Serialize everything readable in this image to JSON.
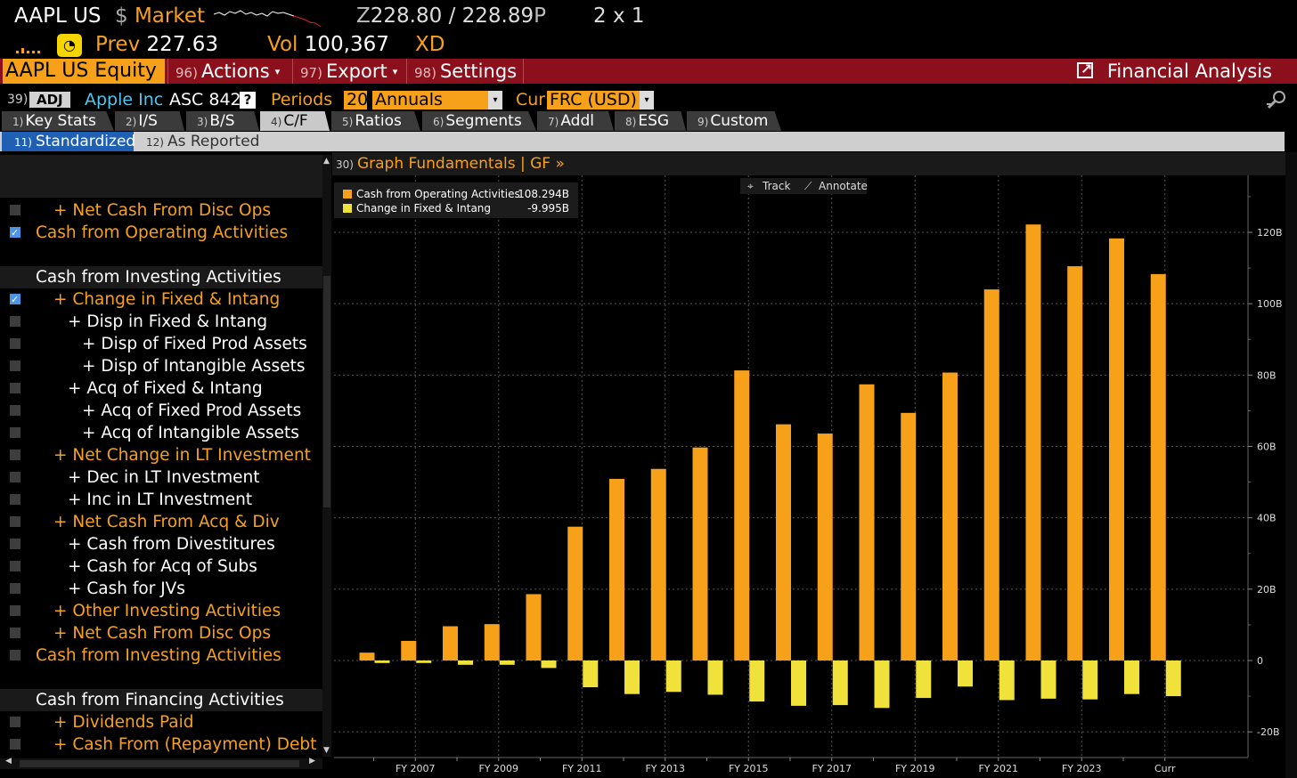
{
  "header": {
    "ticker": "AAPL US",
    "market_symbol": "$",
    "market_label": "Market",
    "quote_prefix": "Z",
    "bid": "228.80",
    "sep": "/",
    "ask": "228.89",
    "quote_suffix": "P",
    "size": "2 x 1",
    "prev_label": "Prev",
    "prev_value": "227.63",
    "vol_label": "Vol",
    "vol_value": "100,367",
    "xd_label": "XD"
  },
  "menubar": {
    "security": "AAPL US Equity",
    "actions_num": "96)",
    "actions_label": "Actions",
    "export_num": "97)",
    "export_label": "Export",
    "settings_num": "98)",
    "settings_label": "Settings",
    "function_title": "Financial Analysis",
    "dropdown_glyph": "▾"
  },
  "options": {
    "num": "39)",
    "adj": "ADJ",
    "company": "Apple Inc",
    "standard": "ASC 842",
    "help": "?",
    "periods_label": "Periods",
    "periods_value": "20",
    "frequency_value": "Annuals",
    "currency_label": "Cur",
    "currency_value": "FRC (USD)",
    "dropdown_glyph": "▾"
  },
  "tabs": [
    {
      "num": "1)",
      "label": "Key Stats"
    },
    {
      "num": "2)",
      "label": "I/S"
    },
    {
      "num": "3)",
      "label": "B/S"
    },
    {
      "num": "4)",
      "label": "C/F"
    },
    {
      "num": "5)",
      "label": "Ratios"
    },
    {
      "num": "6)",
      "label": "Segments"
    },
    {
      "num": "7)",
      "label": "Addl"
    },
    {
      "num": "8)",
      "label": "ESG"
    },
    {
      "num": "9)",
      "label": "Custom"
    }
  ],
  "subtabs": [
    {
      "num": "11)",
      "label": "Standardized"
    },
    {
      "num": "12)",
      "label": "As Reported"
    }
  ],
  "left_panel": {
    "rows": [
      {
        "label": "+ Net Cash From Disc Ops",
        "level": 1,
        "checked": false,
        "section": false
      },
      {
        "label": "Cash from Operating Activities",
        "level": 0,
        "checked": true,
        "section": false
      },
      {
        "label": "",
        "level": -1,
        "checked": false,
        "section": false
      },
      {
        "label": "Cash from Investing Activities",
        "level": 0,
        "checked": false,
        "section": true
      },
      {
        "label": "+ Change in Fixed & Intang",
        "level": 1,
        "checked": true,
        "section": false
      },
      {
        "label": "+ Disp in Fixed & Intang",
        "level": 2,
        "checked": false,
        "section": false
      },
      {
        "label": "+ Disp of Fixed Prod Assets",
        "level": 3,
        "checked": false,
        "section": false
      },
      {
        "label": "+ Disp of Intangible Assets",
        "level": 3,
        "checked": false,
        "section": false
      },
      {
        "label": "+ Acq of Fixed & Intang",
        "level": 2,
        "checked": false,
        "section": false
      },
      {
        "label": "+ Acq of Fixed Prod Assets",
        "level": 3,
        "checked": false,
        "section": false
      },
      {
        "label": "+ Acq of Intangible Assets",
        "level": 3,
        "checked": false,
        "section": false
      },
      {
        "label": "+ Net Change in LT Investment",
        "level": 1,
        "checked": false,
        "section": false
      },
      {
        "label": "+ Dec in LT Investment",
        "level": 2,
        "checked": false,
        "section": false
      },
      {
        "label": "+ Inc in LT Investment",
        "level": 2,
        "checked": false,
        "section": false
      },
      {
        "label": "+ Net Cash From Acq & Div",
        "level": 1,
        "checked": false,
        "section": false
      },
      {
        "label": "+ Cash from Divestitures",
        "level": 2,
        "checked": false,
        "section": false
      },
      {
        "label": "+ Cash for Acq of Subs",
        "level": 2,
        "checked": false,
        "section": false
      },
      {
        "label": "+ Cash for JVs",
        "level": 2,
        "checked": false,
        "section": false
      },
      {
        "label": "+ Other Investing Activities",
        "level": 1,
        "checked": false,
        "section": false
      },
      {
        "label": "+ Net Cash From Disc Ops",
        "level": 1,
        "checked": false,
        "section": false
      },
      {
        "label": "Cash from Investing Activities",
        "level": 0,
        "checked": false,
        "section": false
      },
      {
        "label": "",
        "level": -1,
        "checked": false,
        "section": false
      },
      {
        "label": "Cash from Financing Activities",
        "level": 0,
        "checked": false,
        "section": true
      },
      {
        "label": "+ Dividends Paid",
        "level": 1,
        "checked": false,
        "section": false
      },
      {
        "label": "+ Cash From (Repayment) Debt",
        "level": 1,
        "checked": false,
        "section": false
      }
    ]
  },
  "chart_panel": {
    "num": "30)",
    "title": "Graph Fundamentals | GF »",
    "track_label": "Track",
    "annotate_label": "Annotate"
  },
  "chart_data": {
    "type": "bar",
    "categories": [
      "FY 2006",
      "FY 2007",
      "FY 2008",
      "FY 2009",
      "FY 2010",
      "FY 2011",
      "FY 2012",
      "FY 2013",
      "FY 2014",
      "FY 2015",
      "FY 2016",
      "FY 2017",
      "FY 2018",
      "FY 2019",
      "FY 2020",
      "FY 2021",
      "FY 2022",
      "FY 2023",
      "FY 2024",
      "Curr"
    ],
    "x_tick_labels": [
      "FY 2007",
      "FY 2009",
      "FY 2011",
      "FY 2013",
      "FY 2015",
      "FY 2017",
      "FY 2019",
      "FY 2021",
      "FY 2023",
      "Curr"
    ],
    "series": [
      {
        "name": "Cash from Operating Activities",
        "latest": "108.294B",
        "color": "#f7a11a",
        "values": [
          2.2,
          5.5,
          9.6,
          10.2,
          18.6,
          37.5,
          50.9,
          53.7,
          59.7,
          81.3,
          66.2,
          63.6,
          77.4,
          69.4,
          80.7,
          104.0,
          122.2,
          110.5,
          118.3,
          108.3
        ]
      },
      {
        "name": "Change in Fixed & Intang",
        "latest": "-9.995B",
        "color": "#f0e23a",
        "values": [
          -0.7,
          -0.7,
          -1.2,
          -1.2,
          -2.1,
          -7.5,
          -9.4,
          -8.8,
          -9.6,
          -11.5,
          -12.7,
          -12.5,
          -13.3,
          -10.5,
          -7.3,
          -11.1,
          -10.7,
          -10.9,
          -9.4,
          -10.0
        ]
      }
    ],
    "ylim": [
      -25,
      140
    ],
    "yticks": [
      -20,
      0,
      20,
      40,
      60,
      80,
      100,
      120
    ],
    "ytick_labels": [
      "-20B",
      "0",
      "20B",
      "40B",
      "60B",
      "80B",
      "100B",
      "120B"
    ],
    "grid": true,
    "legend": "top-left"
  }
}
